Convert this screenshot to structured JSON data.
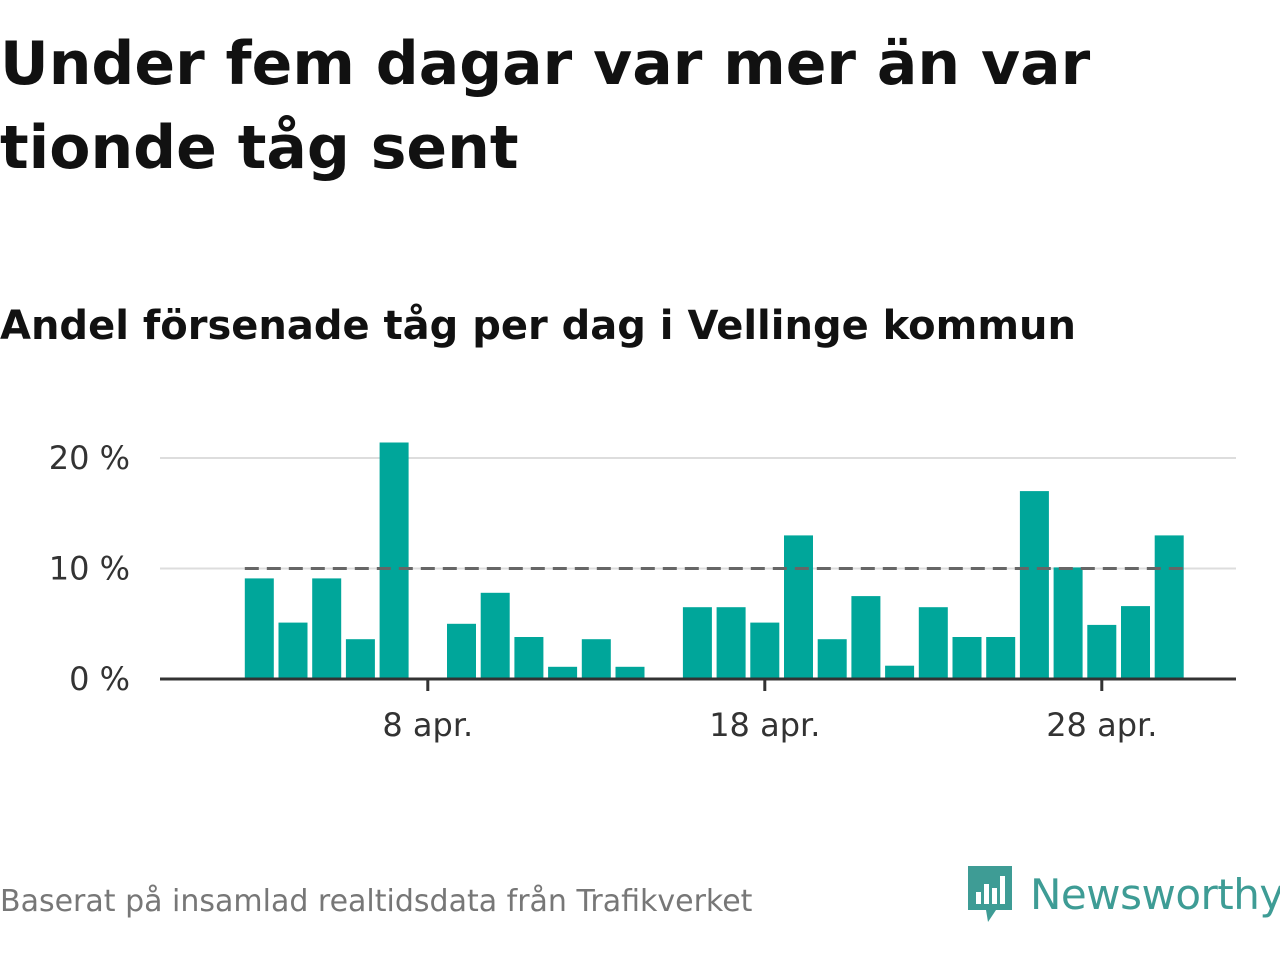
{
  "title": "Under fem dagar var mer än var tionde tåg sent",
  "subtitle": "Andel försenade tåg per dag i Vellinge kommun",
  "source": "Baserat på insamlad realtidsdata från Trafikverket",
  "brand": {
    "name": "Newsworthy",
    "icon": "newsworthy-logo-icon",
    "color": "#3e9c95"
  },
  "colors": {
    "bar": "#00a69a",
    "grid": "#dddddd",
    "axis": "#333333",
    "reference": "#666666"
  },
  "chart_data": {
    "type": "bar",
    "x_start_day": 1,
    "x_month_label": "apr.",
    "x": [
      3,
      4,
      5,
      6,
      7,
      8,
      9,
      10,
      11,
      12,
      13,
      14,
      15,
      16,
      17,
      18,
      19,
      20,
      21,
      22,
      23,
      24,
      25,
      26,
      27,
      28,
      29,
      30
    ],
    "values": [
      9.1,
      5.1,
      9.1,
      3.6,
      21.4,
      null,
      5.0,
      7.8,
      3.8,
      1.1,
      3.6,
      1.1,
      null,
      6.5,
      6.5,
      5.1,
      13.0,
      3.6,
      7.5,
      1.2,
      6.5,
      3.8,
      3.8,
      17.0,
      10.1,
      4.9,
      6.6,
      13.0
    ],
    "ylim": [
      0,
      20
    ],
    "yticks": [
      {
        "value": 0,
        "label": "0 %"
      },
      {
        "value": 10,
        "label": "10 %"
      },
      {
        "value": 20,
        "label": "20 %"
      }
    ],
    "xticks": [
      {
        "value": 8,
        "label": "8 apr."
      },
      {
        "value": 18,
        "label": "18 apr."
      },
      {
        "value": 28,
        "label": "28 apr."
      }
    ],
    "reference_line": 10,
    "grid": true,
    "xlabel": "",
    "ylabel": ""
  }
}
